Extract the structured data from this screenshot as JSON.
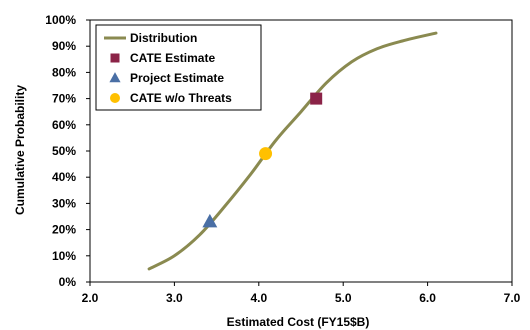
{
  "chart_data": {
    "type": "line",
    "xlabel": "Estimated Cost (FY15$B)",
    "ylabel": "Cumulative Probability",
    "xlim": [
      2.0,
      7.0
    ],
    "ylim": [
      0,
      100
    ],
    "x_ticks": [
      "2.0",
      "3.0",
      "4.0",
      "5.0",
      "6.0",
      "7.0"
    ],
    "y_ticks": [
      "0%",
      "10%",
      "20%",
      "30%",
      "40%",
      "50%",
      "60%",
      "70%",
      "80%",
      "90%",
      "100%"
    ],
    "grid": false,
    "legend_position": "top-left",
    "series": [
      {
        "name": "Distribution",
        "kind": "line",
        "color": "#8a8a50",
        "x": [
          2.7,
          3.0,
          3.3,
          3.6,
          3.9,
          4.2,
          4.5,
          4.8,
          5.1,
          5.4,
          5.7,
          6.1
        ],
        "y": [
          5,
          10,
          18,
          29,
          41,
          54,
          65,
          76,
          84,
          89,
          92,
          95
        ]
      },
      {
        "name": "CATE Estimate",
        "kind": "marker",
        "marker": "square",
        "color": "#8b2347",
        "x": [
          4.68
        ],
        "y": [
          70
        ]
      },
      {
        "name": "Project Estimate",
        "kind": "marker",
        "marker": "triangle",
        "color": "#4a6fa5",
        "x": [
          3.42
        ],
        "y": [
          23
        ]
      },
      {
        "name": "CATE w/o Threats",
        "kind": "marker",
        "marker": "circle",
        "color": "#ffc000",
        "x": [
          4.08
        ],
        "y": [
          49
        ]
      }
    ]
  }
}
